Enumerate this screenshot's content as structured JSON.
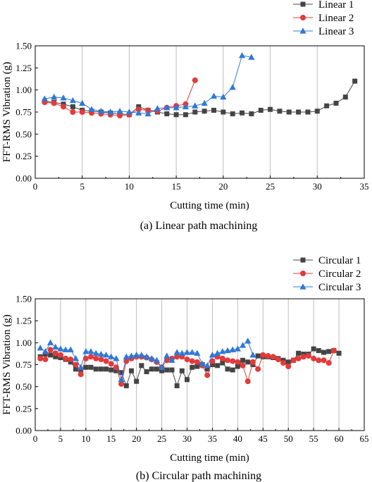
{
  "chart_data": [
    {
      "type": "line",
      "caption": "(a) Linear path machining",
      "xlabel": "Cutting time (min)",
      "ylabel": "FFT-RMS Vibration (g)",
      "xlim": [
        0,
        35
      ],
      "ylim": [
        0,
        1.5
      ],
      "xticks": [
        "0",
        "5",
        "10",
        "15",
        "20",
        "25",
        "30",
        "35"
      ],
      "yticks": [
        "0.00",
        "0.25",
        "0.50",
        "0.75",
        "1.00",
        "1.25",
        "1.50"
      ],
      "grid": "vertical",
      "legend_position": "top-right, outside plot",
      "series": [
        {
          "name": "Linear 1",
          "color": "#444444",
          "marker": "square",
          "x": [
            1,
            2,
            3,
            4,
            5,
            6,
            7,
            8,
            9,
            10,
            11,
            12,
            13,
            14,
            15,
            16,
            17,
            18,
            19,
            20,
            21,
            22,
            23,
            24,
            25,
            26,
            27,
            28,
            29,
            30,
            31,
            32,
            33,
            34
          ],
          "values": [
            0.87,
            0.86,
            0.84,
            0.81,
            0.77,
            0.76,
            0.75,
            0.74,
            0.73,
            0.72,
            0.81,
            0.77,
            0.75,
            0.73,
            0.72,
            0.72,
            0.75,
            0.76,
            0.77,
            0.75,
            0.73,
            0.74,
            0.73,
            0.77,
            0.78,
            0.76,
            0.75,
            0.75,
            0.75,
            0.76,
            0.82,
            0.85,
            0.92,
            1.1
          ]
        },
        {
          "name": "Linear 2",
          "color": "#e33a3a",
          "marker": "circle",
          "x": [
            1,
            2,
            3,
            4,
            5,
            6,
            7,
            8,
            9,
            10,
            11,
            12,
            13,
            14,
            15,
            16,
            17
          ],
          "values": [
            0.86,
            0.85,
            0.81,
            0.75,
            0.75,
            0.74,
            0.73,
            0.72,
            0.71,
            0.72,
            0.78,
            0.77,
            0.76,
            0.8,
            0.82,
            0.84,
            1.11
          ]
        },
        {
          "name": "Linear 3",
          "color": "#2f78d6",
          "marker": "triangle",
          "x": [
            1,
            2,
            3,
            4,
            5,
            6,
            7,
            8,
            9,
            10,
            11,
            12,
            13,
            14,
            15,
            16,
            17,
            18,
            19,
            20,
            21,
            22,
            23
          ],
          "values": [
            0.9,
            0.92,
            0.91,
            0.88,
            0.85,
            0.78,
            0.76,
            0.75,
            0.76,
            0.75,
            0.74,
            0.73,
            0.79,
            0.8,
            0.8,
            0.81,
            0.82,
            0.85,
            0.93,
            0.92,
            1.03,
            1.39,
            1.37
          ]
        }
      ]
    },
    {
      "type": "line",
      "caption": "(b) Circular path machining",
      "xlabel": "Cutting time (min)",
      "ylabel": "FFT-RMS Vibration (g)",
      "xlim": [
        0,
        65
      ],
      "ylim": [
        0,
        1.5
      ],
      "xticks": [
        "0",
        "5",
        "10",
        "15",
        "20",
        "25",
        "30",
        "35",
        "40",
        "45",
        "50",
        "55",
        "60",
        "65"
      ],
      "yticks": [
        "0.00",
        "0.25",
        "0.50",
        "0.75",
        "1.00",
        "1.25",
        "1.50"
      ],
      "grid": "vertical",
      "legend_position": "top-right, outside plot",
      "series": [
        {
          "name": "Circular 1",
          "color": "#444444",
          "marker": "square",
          "x": [
            1,
            2,
            3,
            4,
            5,
            6,
            7,
            8,
            9,
            10,
            11,
            12,
            13,
            14,
            15,
            16,
            17,
            18,
            19,
            20,
            21,
            22,
            23,
            24,
            25,
            26,
            27,
            28,
            29,
            30,
            31,
            32,
            33,
            34,
            35,
            36,
            37,
            38,
            39,
            40,
            41,
            42,
            43,
            44,
            45,
            46,
            47,
            48,
            49,
            50,
            51,
            52,
            53,
            54,
            55,
            56,
            57,
            58,
            59,
            60
          ],
          "values": [
            0.84,
            0.87,
            0.86,
            0.84,
            0.83,
            0.81,
            0.78,
            0.7,
            0.69,
            0.72,
            0.72,
            0.7,
            0.7,
            0.7,
            0.69,
            0.68,
            0.66,
            0.51,
            0.68,
            0.56,
            0.74,
            0.67,
            0.7,
            0.7,
            0.68,
            0.69,
            0.69,
            0.51,
            0.68,
            0.58,
            0.72,
            0.73,
            0.75,
            0.7,
            0.75,
            0.74,
            0.77,
            0.7,
            0.69,
            0.73,
            0.8,
            0.78,
            0.75,
            0.85,
            0.84,
            0.84,
            0.83,
            0.82,
            0.8,
            0.78,
            0.8,
            0.88,
            0.87,
            0.87,
            0.93,
            0.91,
            0.89,
            0.9,
            0.91,
            0.88
          ]
        },
        {
          "name": "Circular 2",
          "color": "#e33a3a",
          "marker": "circle",
          "x": [
            1,
            2,
            3,
            4,
            5,
            6,
            7,
            8,
            9,
            10,
            11,
            12,
            13,
            14,
            15,
            16,
            17,
            18,
            19,
            20,
            21,
            22,
            23,
            24,
            25,
            26,
            27,
            28,
            29,
            30,
            31,
            32,
            33,
            34,
            35,
            36,
            37,
            38,
            39,
            40,
            41,
            42,
            43,
            44,
            45,
            46,
            47,
            48,
            49,
            50,
            51,
            52,
            53,
            54,
            55,
            56,
            57,
            58,
            59
          ],
          "values": [
            0.82,
            0.81,
            0.92,
            0.88,
            0.86,
            0.82,
            0.81,
            0.75,
            0.64,
            0.82,
            0.84,
            0.82,
            0.81,
            0.79,
            0.76,
            0.72,
            0.53,
            0.79,
            0.82,
            0.84,
            0.84,
            0.83,
            0.81,
            0.78,
            0.72,
            0.8,
            0.82,
            0.84,
            0.84,
            0.81,
            0.79,
            0.78,
            0.74,
            0.63,
            0.79,
            0.84,
            0.82,
            0.8,
            0.79,
            0.78,
            0.74,
            0.56,
            0.78,
            0.7,
            0.86,
            0.85,
            0.84,
            0.81,
            0.77,
            0.73,
            0.8,
            0.82,
            0.84,
            0.85,
            0.82,
            0.8,
            0.8,
            0.77,
            0.91
          ]
        },
        {
          "name": "Circular 3",
          "color": "#2f78d6",
          "marker": "triangle",
          "x": [
            1,
            2,
            3,
            4,
            5,
            6,
            7,
            8,
            9,
            10,
            11,
            12,
            13,
            14,
            15,
            16,
            17,
            18,
            19,
            20,
            21,
            22,
            23,
            24,
            25,
            26,
            27,
            28,
            29,
            30,
            31,
            32,
            33,
            34,
            35,
            36,
            37,
            38,
            39,
            40,
            41,
            42,
            43
          ],
          "values": [
            0.94,
            0.9,
            1.0,
            0.95,
            0.93,
            0.92,
            0.92,
            0.82,
            0.72,
            0.9,
            0.9,
            0.88,
            0.87,
            0.86,
            0.84,
            0.82,
            0.58,
            0.84,
            0.85,
            0.86,
            0.86,
            0.84,
            0.82,
            0.8,
            0.72,
            0.85,
            0.8,
            0.89,
            0.88,
            0.89,
            0.89,
            0.88,
            0.76,
            0.74,
            0.86,
            0.88,
            0.9,
            0.91,
            0.92,
            0.93,
            0.97,
            1.02,
            0.86
          ]
        }
      ]
    }
  ]
}
